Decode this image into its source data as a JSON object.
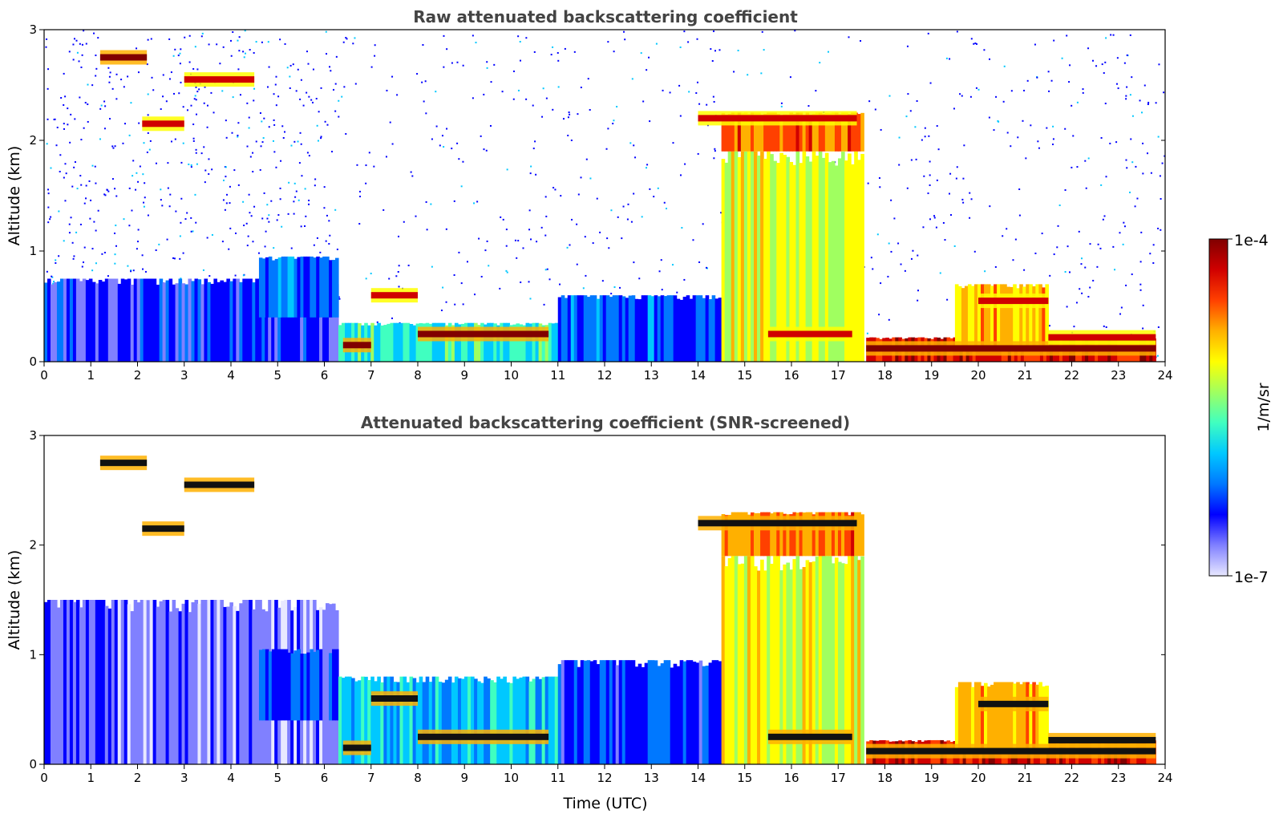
{
  "chart_data": [
    {
      "type": "heatmap",
      "title": "Raw attenuated backscattering coefficient",
      "xlabel": "",
      "ylabel": "Altitude (km)",
      "xlim": [
        0,
        24
      ],
      "ylim": [
        0,
        3
      ],
      "x_ticks": [
        "0",
        "1",
        "2",
        "3",
        "4",
        "5",
        "6",
        "7",
        "8",
        "9",
        "10",
        "11",
        "12",
        "13",
        "14",
        "15",
        "16",
        "17",
        "18",
        "19",
        "20",
        "21",
        "22",
        "23",
        "24"
      ],
      "y_ticks": [
        "0",
        "1",
        "2",
        "3"
      ],
      "screened": false,
      "regions": [
        {
          "t0": 0,
          "t1": 6.3,
          "z0": 0,
          "z1": 0.75,
          "level": 0.18
        },
        {
          "t0": 4.6,
          "t1": 6.3,
          "z0": 0.4,
          "z1": 0.95,
          "level": 0.25
        },
        {
          "t0": 6.3,
          "t1": 11.0,
          "z0": 0,
          "z1": 0.35,
          "level": 0.42
        },
        {
          "t0": 11.0,
          "t1": 14.5,
          "z0": 0,
          "z1": 0.6,
          "level": 0.24
        },
        {
          "t0": 14.5,
          "t1": 17.55,
          "z0": 0,
          "z1": 1.9,
          "level": 0.62
        },
        {
          "t0": 14.5,
          "t1": 17.55,
          "z0": 1.9,
          "z1": 2.25,
          "level": 0.78
        },
        {
          "t0": 17.6,
          "t1": 23.8,
          "z0": 0,
          "z1": 0.22,
          "level": 0.9
        },
        {
          "t0": 19.5,
          "t1": 21.5,
          "z0": 0.1,
          "z1": 0.7,
          "level": 0.72
        }
      ],
      "layers": [
        {
          "t0": 1.2,
          "t1": 2.2,
          "z": 2.75,
          "level": 0.97
        },
        {
          "t0": 2.1,
          "t1": 3.0,
          "z": 2.15,
          "level": 0.95
        },
        {
          "t0": 3.0,
          "t1": 4.5,
          "z": 2.55,
          "level": 0.95
        },
        {
          "t0": 6.4,
          "t1": 7.0,
          "z": 0.15,
          "level": 0.97
        },
        {
          "t0": 7.0,
          "t1": 8.0,
          "z": 0.6,
          "level": 0.92
        },
        {
          "t0": 8.0,
          "t1": 10.8,
          "z": 0.25,
          "level": 0.97
        },
        {
          "t0": 14.0,
          "t1": 17.4,
          "z": 2.2,
          "level": 0.95
        },
        {
          "t0": 15.5,
          "t1": 17.3,
          "z": 0.25,
          "level": 0.95
        },
        {
          "t0": 17.6,
          "t1": 23.8,
          "z": 0.12,
          "level": 0.98
        },
        {
          "t0": 20.0,
          "t1": 21.5,
          "z": 0.55,
          "level": 0.95
        },
        {
          "t0": 21.5,
          "t1": 23.8,
          "z": 0.22,
          "level": 0.95
        }
      ]
    },
    {
      "type": "heatmap",
      "title": "Attenuated backscattering coefficient (SNR-screened)",
      "xlabel": "Time (UTC)",
      "ylabel": "Altitude (km)",
      "xlim": [
        0,
        24
      ],
      "ylim": [
        0,
        3
      ],
      "x_ticks": [
        "0",
        "1",
        "2",
        "3",
        "4",
        "5",
        "6",
        "7",
        "8",
        "9",
        "10",
        "11",
        "12",
        "13",
        "14",
        "15",
        "16",
        "17",
        "18",
        "19",
        "20",
        "21",
        "22",
        "23",
        "24"
      ],
      "y_ticks": [
        "0",
        "1",
        "2",
        "3"
      ],
      "screened": true,
      "regions": [
        {
          "t0": 0,
          "t1": 6.3,
          "z0": 0,
          "z1": 1.5,
          "level": 0.1
        },
        {
          "t0": 4.6,
          "t1": 6.3,
          "z0": 0.4,
          "z1": 1.05,
          "level": 0.22
        },
        {
          "t0": 6.3,
          "t1": 11.0,
          "z0": 0,
          "z1": 0.8,
          "level": 0.35
        },
        {
          "t0": 11.0,
          "t1": 14.5,
          "z0": 0,
          "z1": 0.95,
          "level": 0.2
        },
        {
          "t0": 14.5,
          "t1": 17.55,
          "z0": 0,
          "z1": 1.9,
          "level": 0.62
        },
        {
          "t0": 14.5,
          "t1": 17.55,
          "z0": 1.9,
          "z1": 2.3,
          "level": 0.78
        },
        {
          "t0": 17.6,
          "t1": 23.8,
          "z0": 0,
          "z1": 0.22,
          "level": 0.9
        },
        {
          "t0": 19.5,
          "t1": 21.5,
          "z0": 0.1,
          "z1": 0.75,
          "level": 0.7
        }
      ],
      "layers": [
        {
          "t0": 1.2,
          "t1": 2.2,
          "z": 2.75,
          "level": 1.0
        },
        {
          "t0": 2.1,
          "t1": 3.0,
          "z": 2.15,
          "level": 1.0
        },
        {
          "t0": 3.0,
          "t1": 4.5,
          "z": 2.55,
          "level": 1.0
        },
        {
          "t0": 6.4,
          "t1": 7.0,
          "z": 0.15,
          "level": 1.0
        },
        {
          "t0": 7.0,
          "t1": 8.0,
          "z": 0.6,
          "level": 1.0
        },
        {
          "t0": 8.0,
          "t1": 10.8,
          "z": 0.25,
          "level": 1.0
        },
        {
          "t0": 14.0,
          "t1": 17.4,
          "z": 2.2,
          "level": 1.0
        },
        {
          "t0": 15.5,
          "t1": 17.3,
          "z": 0.25,
          "level": 1.0
        },
        {
          "t0": 17.6,
          "t1": 23.8,
          "z": 0.12,
          "level": 1.0
        },
        {
          "t0": 20.0,
          "t1": 21.5,
          "z": 0.55,
          "level": 1.0
        },
        {
          "t0": 21.5,
          "t1": 23.8,
          "z": 0.22,
          "level": 1.0
        }
      ]
    }
  ],
  "colorbar": {
    "label": "1/m/sr",
    "max_label": "1e-4",
    "min_label": "1e-7",
    "scale": "log",
    "range": [
      1e-07,
      0.0001
    ],
    "colormap": [
      "#e8e8ff",
      "#8080ff",
      "#0000ff",
      "#0078ff",
      "#00c8ff",
      "#40ffc0",
      "#a0ff60",
      "#ffff00",
      "#ffb000",
      "#ff4000",
      "#d00000",
      "#800000"
    ]
  }
}
